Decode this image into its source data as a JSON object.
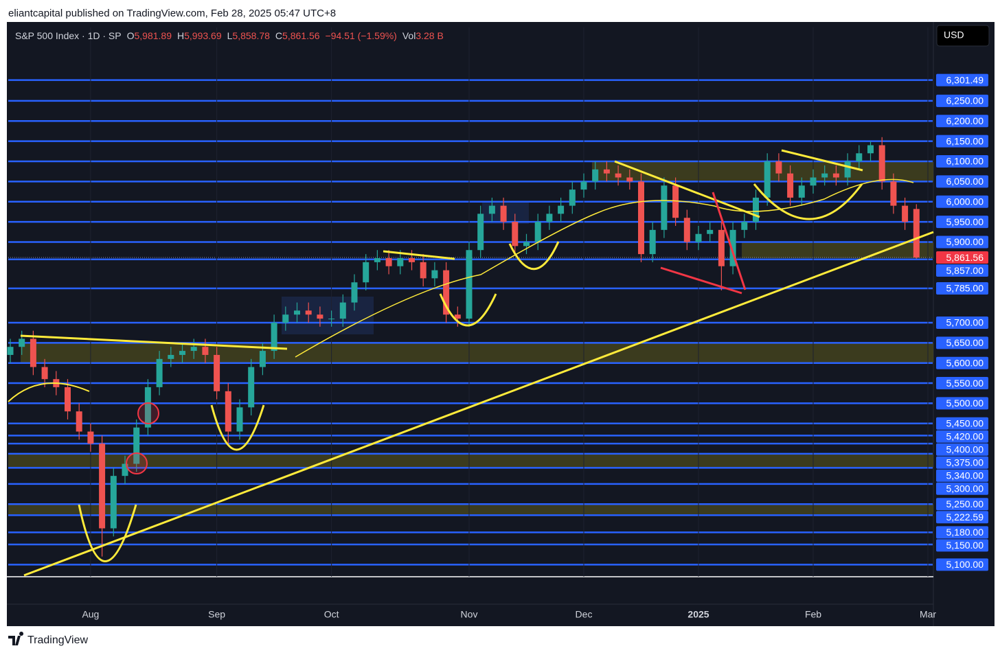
{
  "header": {
    "text": "eliantcapital published on TradingView.com, Feb 28, 2025 05:47 UTC+8"
  },
  "footer": {
    "brand": "TradingView"
  },
  "currency_button": "USD",
  "chart_data": {
    "type": "candlestick",
    "legend": {
      "symbol": "S&P 500 Index · 1D · SP",
      "items": [
        {
          "key": "O",
          "value": "5,981.89"
        },
        {
          "key": "H",
          "value": "5,993.69"
        },
        {
          "key": "L",
          "value": "5,858.78"
        },
        {
          "key": "C",
          "value": "5,861.56"
        }
      ],
      "change": "−94.51 (−1.59%)",
      "volume_key": "Vol",
      "volume": "3.28 B"
    },
    "categories": [
      null,
      null,
      null,
      null,
      null,
      null,
      null,
      "Aug",
      null,
      null,
      null,
      null,
      null,
      null,
      null,
      null,
      null,
      null,
      "Sep",
      null,
      null,
      null,
      null,
      null,
      null,
      null,
      null,
      null,
      "Oct",
      null,
      null,
      null,
      null,
      null,
      null,
      null,
      null,
      null,
      null,
      null,
      "Nov",
      null,
      null,
      null,
      null,
      null,
      null,
      null,
      null,
      null,
      "Dec",
      null,
      null,
      null,
      null,
      null,
      null,
      null,
      null,
      null,
      "2025",
      null,
      null,
      null,
      null,
      null,
      null,
      null,
      null,
      null,
      "Feb",
      null,
      null,
      null,
      null,
      null,
      null,
      null,
      null,
      null,
      "Mar"
    ],
    "open": [
      5620,
      5640,
      5660,
      5590,
      5560,
      5540,
      5480,
      5430,
      5400,
      5190,
      5320,
      5350,
      5440,
      5540,
      5610,
      5620,
      5630,
      5640,
      5620,
      5530,
      5430,
      5490,
      5590,
      5630,
      5700,
      5720,
      5730,
      5720,
      5710,
      5710,
      5750,
      5800,
      5850,
      5860,
      5840,
      5860,
      5850,
      5810,
      5830,
      5720,
      5710,
      5880,
      5970,
      5990,
      5950,
      5890,
      5900,
      5950,
      5970,
      5990,
      6030,
      6050,
      6080,
      6070,
      6060,
      6050,
      5870,
      5930,
      6040,
      5960,
      5900,
      5920,
      5930,
      5840,
      5930,
      5950,
      6010,
      6100,
      6070,
      6010,
      6040,
      6060,
      6070,
      6060,
      6100,
      6120,
      6140,
      6050,
      5990,
      5981.89,
      null
    ],
    "high": [
      5660,
      5680,
      5680,
      5610,
      5580,
      5560,
      5500,
      5450,
      5420,
      5340,
      5370,
      5460,
      5560,
      5630,
      5640,
      5650,
      5660,
      5660,
      5640,
      5550,
      5510,
      5610,
      5650,
      5720,
      5740,
      5750,
      5750,
      5740,
      5730,
      5770,
      5820,
      5870,
      5880,
      5880,
      5880,
      5880,
      5870,
      5850,
      5850,
      5740,
      5900,
      5990,
      6010,
      6010,
      5970,
      5920,
      5970,
      5990,
      6010,
      6050,
      6070,
      6100,
      6100,
      6090,
      6080,
      6070,
      5950,
      6060,
      6060,
      5980,
      5940,
      5950,
      5950,
      5950,
      5970,
      6030,
      6120,
      6120,
      6090,
      6060,
      6080,
      6090,
      6090,
      6120,
      6140,
      6150,
      6160,
      6070,
      6010,
      5993.69,
      null
    ],
    "low": [
      5600,
      5620,
      5570,
      5540,
      5520,
      5460,
      5410,
      5380,
      5120,
      5170,
      5300,
      5330,
      5420,
      5520,
      5590,
      5600,
      5610,
      5600,
      5510,
      5400,
      5410,
      5470,
      5570,
      5610,
      5680,
      5700,
      5700,
      5690,
      5690,
      5690,
      5730,
      5780,
      5830,
      5820,
      5820,
      5830,
      5790,
      5790,
      5700,
      5690,
      5690,
      5860,
      5950,
      5930,
      5870,
      5870,
      5880,
      5930,
      5950,
      5970,
      6010,
      6030,
      6050,
      6040,
      6030,
      5850,
      5850,
      5910,
      5940,
      5880,
      5880,
      5900,
      5780,
      5820,
      5910,
      5930,
      5990,
      6050,
      5990,
      5990,
      6020,
      6040,
      6040,
      6040,
      6080,
      6100,
      6030,
      5970,
      5930,
      5858.78,
      null
    ],
    "close": [
      5640,
      5660,
      5590,
      5560,
      5540,
      5480,
      5430,
      5400,
      5190,
      5320,
      5350,
      5440,
      5540,
      5610,
      5620,
      5630,
      5640,
      5620,
      5530,
      5430,
      5490,
      5590,
      5630,
      5700,
      5720,
      5730,
      5720,
      5710,
      5710,
      5750,
      5800,
      5850,
      5860,
      5840,
      5860,
      5850,
      5810,
      5830,
      5720,
      5710,
      5880,
      5970,
      5990,
      5950,
      5890,
      5900,
      5950,
      5970,
      5990,
      6030,
      6050,
      6080,
      6070,
      6060,
      6050,
      5870,
      5930,
      6040,
      5960,
      5900,
      5920,
      5930,
      5840,
      5930,
      5950,
      6010,
      6100,
      6070,
      6010,
      6040,
      6060,
      6070,
      6060,
      6100,
      6120,
      6140,
      6050,
      5990,
      5950,
      5861.56,
      null
    ],
    "up_color": "#26a69a",
    "down_color": "#ef5350",
    "level_color": "#2962ff",
    "ylim": [
      5070,
      6432
    ],
    "yticks": [
      {
        "value": 6301.49,
        "label": "6,301.49"
      },
      {
        "value": 6250,
        "label": "6,250.00"
      },
      {
        "value": 6200,
        "label": "6,200.00"
      },
      {
        "value": 6150,
        "label": "6,150.00"
      },
      {
        "value": 6100,
        "label": "6,100.00"
      },
      {
        "value": 6050,
        "label": "6,050.00"
      },
      {
        "value": 6000,
        "label": "6,000.00"
      },
      {
        "value": 5950,
        "label": "5,950.00"
      },
      {
        "value": 5900,
        "label": "5,900.00"
      },
      {
        "value": 5857,
        "label": "5,857.00"
      },
      {
        "value": 5785,
        "label": "5,785.00"
      },
      {
        "value": 5700,
        "label": "5,700.00"
      },
      {
        "value": 5650,
        "label": "5,650.00"
      },
      {
        "value": 5600,
        "label": "5,600.00"
      },
      {
        "value": 5550,
        "label": "5,550.00"
      },
      {
        "value": 5500,
        "label": "5,500.00"
      },
      {
        "value": 5450,
        "label": "5,450.00"
      },
      {
        "value": 5420,
        "label": "5,420.00"
      },
      {
        "value": 5400,
        "label": "5,400.00"
      },
      {
        "value": 5375,
        "label": "5,375.00"
      },
      {
        "value": 5340,
        "label": "5,340.00"
      },
      {
        "value": 5300,
        "label": "5,300.00"
      },
      {
        "value": 5250,
        "label": "5,250.00"
      },
      {
        "value": 5222.59,
        "label": "5,222.59"
      },
      {
        "value": 5180,
        "label": "5,180.00"
      },
      {
        "value": 5150,
        "label": "5,150.00"
      },
      {
        "value": 5100,
        "label": "5,100.00"
      }
    ],
    "last_price": {
      "value": 5861.56,
      "label": "5,861.56",
      "color": "#f23645"
    }
  }
}
